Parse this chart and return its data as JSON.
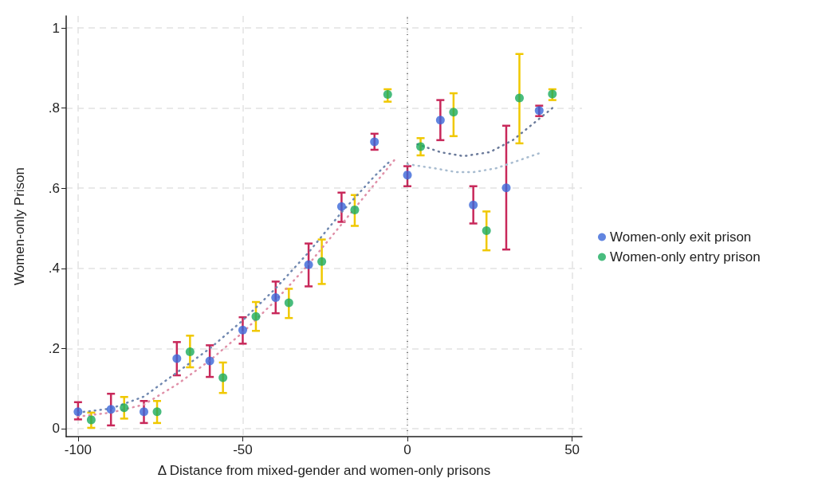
{
  "chart_data": {
    "type": "scatter",
    "xlabel": "Δ Distance from mixed-gender and women-only prisons",
    "ylabel": "Women-only Prison",
    "xlim": [
      -103.6,
      53
    ],
    "xticks": [
      -100,
      -50,
      0,
      50
    ],
    "ylim": [
      -0.02,
      1.03
    ],
    "yticks": [
      0,
      {
        "value": 0.2,
        "label": ".2"
      },
      {
        "value": 0.4,
        "label": ".4"
      },
      {
        "value": 0.6,
        "label": ".6"
      },
      {
        "value": 0.8,
        "label": ".8"
      },
      1
    ],
    "grid": true,
    "legend": "right",
    "marker": "circle",
    "ref_lines": [
      {
        "axis": "x",
        "value": 0,
        "color": "#555555",
        "line_style": "dotted"
      }
    ],
    "series": [
      {
        "name": "Women-only exit prison",
        "color": "#3a66d8",
        "x": [
          -100,
          -90,
          -80,
          -70,
          -60,
          -50,
          -40,
          -30,
          -20,
          -10,
          0,
          10,
          20,
          30,
          40
        ],
        "values": [
          0.042,
          0.048,
          0.042,
          0.175,
          0.169,
          0.246,
          0.327,
          0.409,
          0.554,
          0.716,
          0.633,
          0.77,
          0.558,
          0.601,
          0.794
        ],
        "errors": [
          [
            0.023,
            0.066
          ],
          [
            0.008,
            0.087
          ],
          [
            0.014,
            0.069
          ],
          [
            0.133,
            0.216
          ],
          [
            0.129,
            0.208
          ],
          [
            0.212,
            0.278
          ],
          [
            0.288,
            0.367
          ],
          [
            0.355,
            0.462
          ],
          [
            0.516,
            0.589
          ],
          [
            0.696,
            0.736
          ],
          [
            0.605,
            0.655
          ],
          [
            0.72,
            0.82
          ],
          [
            0.512,
            0.605
          ],
          [
            0.447,
            0.756
          ],
          [
            0.78,
            0.806
          ]
        ]
      },
      {
        "name": "Women-only entry prison",
        "color": "#1aab5e",
        "x": [
          -96,
          -86,
          -76,
          -66,
          -56,
          -46,
          -36,
          -26,
          -16,
          -6,
          4,
          14,
          24,
          34,
          44
        ],
        "values": [
          0.022,
          0.052,
          0.042,
          0.192,
          0.127,
          0.28,
          0.314,
          0.417,
          0.546,
          0.834,
          0.704,
          0.79,
          0.494,
          0.825,
          0.835
        ],
        "errors": [
          [
            0.002,
            0.04
          ],
          [
            0.025,
            0.079
          ],
          [
            0.014,
            0.069
          ],
          [
            0.153,
            0.232
          ],
          [
            0.089,
            0.165
          ],
          [
            0.244,
            0.316
          ],
          [
            0.276,
            0.349
          ],
          [
            0.361,
            0.472
          ],
          [
            0.506,
            0.583
          ],
          [
            0.816,
            0.847
          ],
          [
            0.682,
            0.725
          ],
          [
            0.73,
            0.837
          ],
          [
            0.445,
            0.542
          ],
          [
            0.712,
            0.935
          ],
          [
            0.82,
            0.847
          ]
        ]
      },
      {
        "type": "line",
        "color": "#7088b0",
        "marker": "none",
        "line_style": "dotted",
        "x": [
          -100,
          -90,
          -80,
          -70,
          -60,
          -50,
          -40,
          -30,
          -20,
          -10,
          -5
        ],
        "values": [
          0.04,
          0.05,
          0.08,
          0.14,
          0.2,
          0.27,
          0.35,
          0.44,
          0.54,
          0.63,
          0.67
        ]
      },
      {
        "type": "line",
        "color": "#e090a8",
        "marker": "none",
        "line_style": "dotted",
        "x": [
          -100,
          -90,
          -80,
          -70,
          -60,
          -50,
          -40,
          -30,
          -20,
          -10,
          -4
        ],
        "values": [
          0.03,
          0.04,
          0.06,
          0.11,
          0.17,
          0.24,
          0.32,
          0.41,
          0.51,
          0.61,
          0.67
        ]
      },
      {
        "type": "line",
        "color": "#6a7a9a",
        "marker": "none",
        "line_style": "dotted",
        "x": [
          3,
          10,
          17,
          25,
          32,
          38,
          44
        ],
        "values": [
          0.71,
          0.69,
          0.68,
          0.69,
          0.72,
          0.76,
          0.8
        ]
      },
      {
        "type": "line",
        "color": "#a8bcd0",
        "marker": "none",
        "line_style": "dotted",
        "x": [
          0,
          8,
          15,
          20,
          27,
          34,
          41
        ],
        "values": [
          0.66,
          0.65,
          0.64,
          0.64,
          0.65,
          0.67,
          0.69
        ]
      }
    ]
  }
}
